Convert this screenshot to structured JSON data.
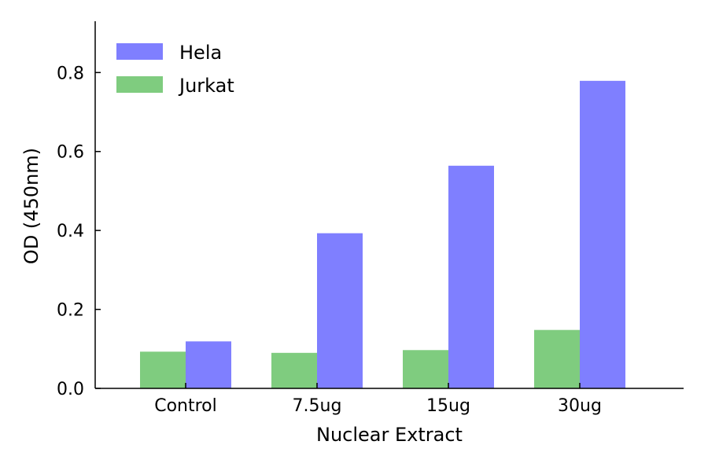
{
  "chart_data": {
    "type": "bar",
    "title": "",
    "xlabel": "Nuclear Extract",
    "ylabel": "OD (450nm)",
    "categories": [
      "Control",
      "7.5ug",
      "15ug",
      "30ug"
    ],
    "series": [
      {
        "name": "Jurkat",
        "color": "#7fcc7f",
        "values": [
          0.093,
          0.09,
          0.097,
          0.148
        ]
      },
      {
        "name": "Hela",
        "color": "#7f7fff",
        "values": [
          0.119,
          0.393,
          0.564,
          0.779
        ]
      }
    ],
    "ylim": [
      0,
      0.93
    ],
    "yticks": [
      0.0,
      0.2,
      0.4,
      0.6,
      0.8
    ],
    "ytick_labels": [
      "0.0",
      "0.2",
      "0.4",
      "0.6",
      "0.8"
    ],
    "legend": {
      "position": "top-left",
      "entries": [
        {
          "label": "Hela",
          "color": "#7f7fff"
        },
        {
          "label": "Jurkat",
          "color": "#7fcc7f"
        }
      ]
    },
    "grid": false
  }
}
